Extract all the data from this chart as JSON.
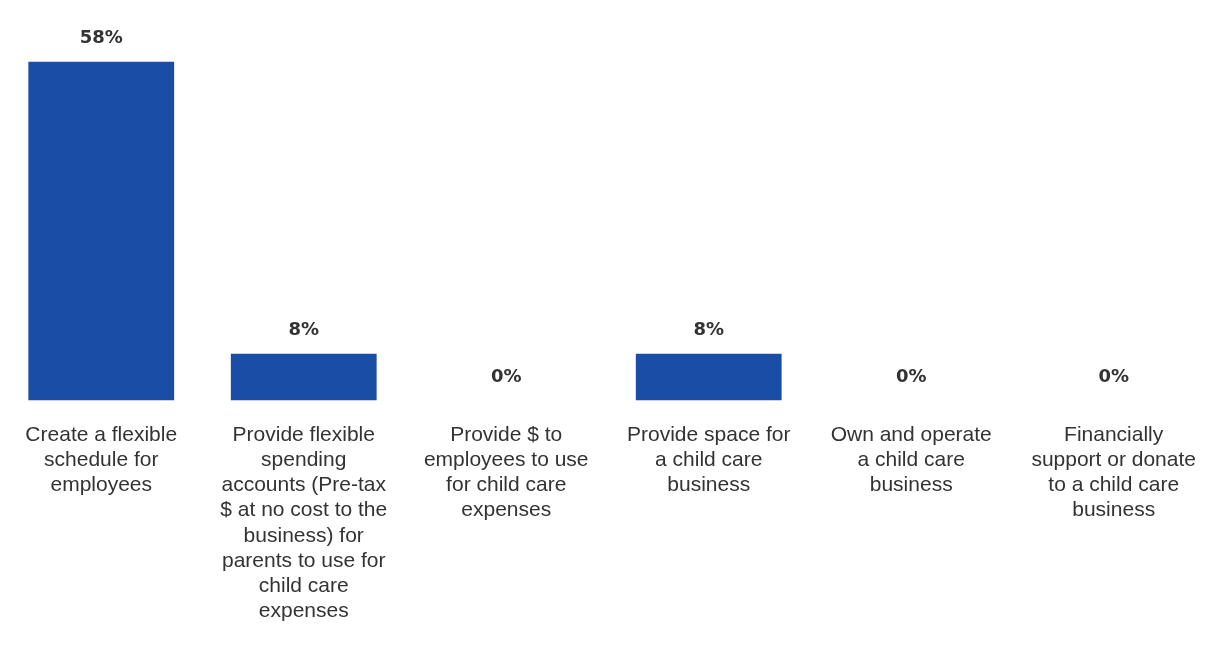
{
  "chart_data": {
    "type": "bar",
    "categories": [
      "Create a flexible schedule for employees",
      "Provide flexible spending accounts (Pre-tax $ at no cost to the business) for parents to use for child care expenses",
      "Provide $ to employees to use for child care expenses",
      "Provide space for a child care business",
      "Own and operate a child care business",
      "Financially support or donate to a child care business"
    ],
    "values": [
      58,
      8,
      0,
      8,
      0,
      0
    ],
    "value_labels": [
      "58%",
      "8%",
      "0%",
      "8%",
      "0%",
      "0%"
    ],
    "color": "#1a4ea6",
    "grid": false,
    "legend": false
  }
}
